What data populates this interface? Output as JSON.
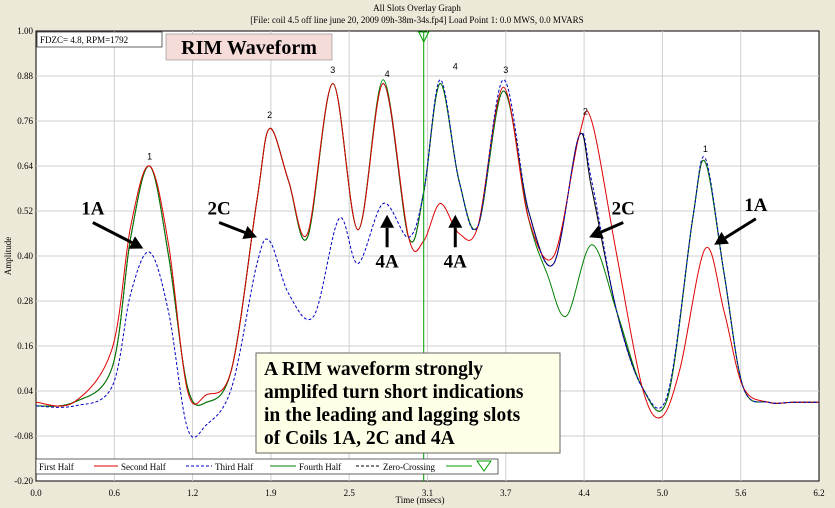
{
  "colors": {
    "background": "#ece9d8",
    "plot_bg": "#ffffff",
    "grid": "#cfcfcf",
    "first_half": "#000000",
    "second_half": "#e00000",
    "third_half": "#0000c8",
    "fourth_half": "#008000",
    "zero_crossing": "#000000",
    "cursor": "#00a000",
    "rim_box_bg": "#f6dcd8",
    "note_box_bg": "#ffffe8"
  },
  "chart_data": {
    "type": "line",
    "title": "All Slots Overlay Graph",
    "subtitle": "[File: coil 4.5 off line june 20, 2009  09h-38m-34s.fp4]  Load Point 1:   0.0 MWS,   0.0 MVARS",
    "xlabel": "Time (msecs)",
    "ylabel": "Amplitude",
    "xlim": [
      0,
      6.2
    ],
    "ylim": [
      -0.2,
      1.0
    ],
    "xticks": [
      "0.0",
      "0.6",
      "1.2",
      "1.9",
      "2.5",
      "3.1",
      "3.7",
      "4.4",
      "5.0",
      "5.6",
      "6.2"
    ],
    "xtick_values": [
      0.0,
      0.62,
      1.24,
      1.86,
      2.48,
      3.1,
      3.72,
      4.34,
      4.96,
      5.58,
      6.2
    ],
    "yticks": [
      "1.00",
      "0.88",
      "0.76",
      "0.64",
      "0.52",
      "0.40",
      "0.28",
      "0.16",
      "0.04",
      "-0.08",
      "-0.20"
    ],
    "ytick_values": [
      1.0,
      0.88,
      0.76,
      0.64,
      0.52,
      0.4,
      0.28,
      0.16,
      0.04,
      -0.08,
      -0.2
    ],
    "grid": true,
    "cursor_x": 3.07,
    "series": [
      {
        "name": "First Half",
        "x": [
          0,
          0.3,
          0.6,
          0.75,
          0.9,
          1.05,
          1.2,
          1.35,
          1.55,
          1.75,
          1.85,
          2.0,
          2.15,
          2.35,
          2.55,
          2.75,
          2.95,
          3.07,
          3.2,
          3.35,
          3.5,
          3.7,
          3.9,
          4.1,
          4.3,
          4.4,
          4.6,
          4.8,
          5.0,
          5.2,
          5.3,
          5.45,
          5.6,
          5.8,
          6.0,
          6.2
        ],
        "y": [
          0.0,
          0.01,
          0.1,
          0.45,
          0.64,
          0.4,
          0.05,
          0.01,
          0.1,
          0.55,
          0.74,
          0.6,
          0.45,
          0.86,
          0.47,
          0.86,
          0.45,
          0.57,
          0.86,
          0.6,
          0.48,
          0.84,
          0.52,
          0.38,
          0.72,
          0.58,
          0.25,
          0.05,
          0.02,
          0.5,
          0.65,
          0.35,
          0.05,
          0.01,
          0.01,
          0.01
        ]
      },
      {
        "name": "Second Half",
        "x": [
          0,
          0.3,
          0.6,
          0.75,
          0.9,
          1.05,
          1.2,
          1.35,
          1.55,
          1.75,
          1.85,
          2.0,
          2.15,
          2.35,
          2.55,
          2.75,
          2.95,
          3.07,
          3.2,
          3.35,
          3.5,
          3.7,
          3.9,
          4.1,
          4.3,
          4.4,
          4.6,
          4.8,
          4.95,
          5.1,
          5.3,
          5.45,
          5.6,
          5.8,
          6.0,
          6.2
        ],
        "y": [
          0.01,
          0.01,
          0.15,
          0.48,
          0.64,
          0.43,
          0.04,
          0.03,
          0.1,
          0.55,
          0.74,
          0.6,
          0.46,
          0.86,
          0.47,
          0.86,
          0.45,
          0.44,
          0.54,
          0.46,
          0.48,
          0.85,
          0.5,
          0.4,
          0.72,
          0.76,
          0.4,
          0.05,
          -0.03,
          0.1,
          0.42,
          0.25,
          0.05,
          0.01,
          0.01,
          0.01
        ]
      },
      {
        "name": "Third Half",
        "x": [
          0,
          0.3,
          0.6,
          0.75,
          0.9,
          1.05,
          1.2,
          1.35,
          1.55,
          1.75,
          1.85,
          2.0,
          2.2,
          2.4,
          2.55,
          2.75,
          2.95,
          3.07,
          3.2,
          3.35,
          3.5,
          3.7,
          3.9,
          4.1,
          4.3,
          4.4,
          4.6,
          4.8,
          5.0,
          5.2,
          5.3,
          5.45,
          5.6,
          5.8,
          6.0,
          6.2
        ],
        "y": [
          0.0,
          0.0,
          0.05,
          0.3,
          0.41,
          0.25,
          -0.06,
          -0.05,
          0.05,
          0.38,
          0.44,
          0.3,
          0.24,
          0.5,
          0.38,
          0.54,
          0.45,
          0.57,
          0.87,
          0.6,
          0.48,
          0.87,
          0.52,
          0.38,
          0.72,
          0.6,
          0.25,
          0.05,
          0.03,
          0.5,
          0.66,
          0.35,
          0.05,
          0.01,
          0.01,
          0.01
        ]
      },
      {
        "name": "Fourth Half",
        "x": [
          0,
          0.3,
          0.6,
          0.75,
          0.9,
          1.05,
          1.2,
          1.35,
          1.55,
          1.75,
          1.85,
          2.0,
          2.15,
          2.35,
          2.55,
          2.75,
          2.95,
          3.07,
          3.2,
          3.35,
          3.5,
          3.7,
          3.9,
          4.05,
          4.2,
          4.4,
          4.6,
          4.8,
          5.0,
          5.2,
          5.3,
          5.45,
          5.6,
          5.8,
          6.0,
          6.2
        ],
        "y": [
          0.0,
          0.01,
          0.1,
          0.45,
          0.64,
          0.4,
          0.05,
          0.01,
          0.1,
          0.55,
          0.74,
          0.6,
          0.45,
          0.86,
          0.47,
          0.87,
          0.45,
          0.57,
          0.86,
          0.6,
          0.48,
          0.84,
          0.5,
          0.35,
          0.24,
          0.43,
          0.25,
          0.05,
          0.02,
          0.5,
          0.65,
          0.35,
          0.05,
          0.01,
          0.01,
          0.01
        ]
      },
      {
        "name": "Zero-Crossing",
        "x": [],
        "y": []
      }
    ],
    "legend_position": "bottom",
    "peak_labels": [
      {
        "text": "1",
        "x": 0.9,
        "y": 0.65
      },
      {
        "text": "2",
        "x": 1.85,
        "y": 0.76
      },
      {
        "text": "3",
        "x": 2.35,
        "y": 0.88
      },
      {
        "text": "4",
        "x": 2.78,
        "y": 0.87
      },
      {
        "text": "4",
        "x": 3.32,
        "y": 0.89
      },
      {
        "text": "3",
        "x": 3.72,
        "y": 0.88
      },
      {
        "text": "2",
        "x": 4.35,
        "y": 0.77
      },
      {
        "text": "1",
        "x": 5.3,
        "y": 0.67
      }
    ],
    "annotations": [
      {
        "text": "1A",
        "x": 0.45,
        "y": 0.5,
        "arrow_to": [
          0.85,
          0.42
        ]
      },
      {
        "text": "2C",
        "x": 1.45,
        "y": 0.5,
        "arrow_to": [
          1.75,
          0.45
        ]
      },
      {
        "text": "4A",
        "x": 2.78,
        "y": 0.37,
        "arrow_to": [
          2.78,
          0.51
        ]
      },
      {
        "text": "4A",
        "x": 3.32,
        "y": 0.37,
        "arrow_to": [
          3.32,
          0.51
        ]
      },
      {
        "text": "2C",
        "x": 4.65,
        "y": 0.5,
        "arrow_to": [
          4.38,
          0.45
        ]
      },
      {
        "text": "1A",
        "x": 5.7,
        "y": 0.51,
        "arrow_to": [
          5.37,
          0.43
        ]
      }
    ]
  },
  "header": {
    "info": "FDZC= 4.8, RPM=1792",
    "rim_label": "RIM Waveform"
  },
  "note": {
    "lines": [
      "A RIM waveform strongly",
      "amplifed turn short indications",
      "in the leading and lagging slots",
      "of Coils 1A, 2C and 4A"
    ]
  },
  "legend": {
    "items": [
      "First Half",
      "Second Half",
      "Third Half",
      "Fourth Half",
      "Zero-Crossing"
    ]
  }
}
